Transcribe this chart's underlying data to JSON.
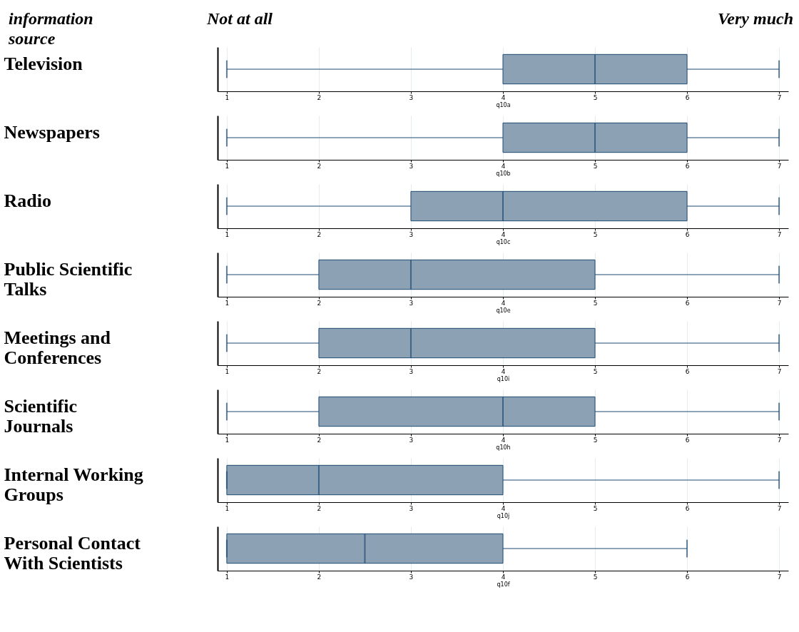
{
  "chart_data": [
    {
      "type": "box",
      "orientation": "horizontal",
      "ylabel": "Television",
      "xlabel": "q10a",
      "annotations": [
        "information source",
        "Not at all",
        "Very much"
      ],
      "categories": [
        null
      ],
      "xlim": [
        0.9,
        7.1
      ],
      "xticks": [
        1,
        2,
        3,
        4,
        5,
        6,
        7
      ],
      "grid": "x",
      "tick_labels": "x",
      "color": "#8da1b5",
      "boxes": [
        {
          "low": 1,
          "q1": 4,
          "median": 5,
          "q3": 6,
          "high": 7
        }
      ]
    },
    {
      "type": "box",
      "orientation": "horizontal",
      "ylabel": "Newspapers",
      "xlabel": "q10b",
      "categories": [
        null
      ],
      "xlim": [
        0.9,
        7.1
      ],
      "xticks": [
        1,
        2,
        3,
        4,
        5,
        6,
        7
      ],
      "grid": "x",
      "tick_labels": "x",
      "color": "#8da1b5",
      "boxes": [
        {
          "low": 1,
          "q1": 4,
          "median": 5,
          "q3": 6,
          "high": 7
        }
      ]
    },
    {
      "type": "box",
      "orientation": "horizontal",
      "ylabel": "Radio",
      "xlabel": "q10c",
      "categories": [
        null
      ],
      "xlim": [
        0.9,
        7.1
      ],
      "xticks": [
        1,
        2,
        3,
        4,
        5,
        6,
        7
      ],
      "grid": "x",
      "tick_labels": "x",
      "color": "#8da1b5",
      "boxes": [
        {
          "low": 1,
          "q1": 3,
          "median": 4,
          "q3": 6,
          "high": 7
        }
      ]
    },
    {
      "type": "box",
      "orientation": "horizontal",
      "ylabel": "Public Scientific Talks",
      "xlabel": "q10e",
      "categories": [
        null
      ],
      "xlim": [
        0.9,
        7.1
      ],
      "xticks": [
        1,
        2,
        3,
        4,
        5,
        6,
        7
      ],
      "grid": "x",
      "tick_labels": "x",
      "color": "#8da1b5",
      "boxes": [
        {
          "low": 1,
          "q1": 2,
          "median": 3,
          "q3": 5,
          "high": 7
        }
      ]
    },
    {
      "type": "box",
      "orientation": "horizontal",
      "ylabel": "Meetings and Conferences",
      "xlabel": "q10i",
      "categories": [
        null
      ],
      "xlim": [
        0.9,
        7.1
      ],
      "xticks": [
        1,
        2,
        3,
        4,
        5,
        6,
        7
      ],
      "grid": "x",
      "tick_labels": "x",
      "color": "#8da1b5",
      "boxes": [
        {
          "low": 1,
          "q1": 2,
          "median": 3,
          "q3": 5,
          "high": 7
        }
      ]
    },
    {
      "type": "box",
      "orientation": "horizontal",
      "ylabel": "Scientific Journals",
      "xlabel": "q10h",
      "categories": [
        null
      ],
      "xlim": [
        0.9,
        7.1
      ],
      "xticks": [
        1,
        2,
        3,
        4,
        5,
        6,
        7
      ],
      "grid": "x",
      "tick_labels": "x",
      "color": "#8da1b5",
      "boxes": [
        {
          "low": 1,
          "q1": 2,
          "median": 4,
          "q3": 5,
          "high": 7
        }
      ]
    },
    {
      "type": "box",
      "orientation": "horizontal",
      "ylabel": "Internal Working Groups",
      "xlabel": "q10j",
      "categories": [
        null
      ],
      "xlim": [
        0.9,
        7.1
      ],
      "xticks": [
        1,
        2,
        3,
        4,
        5,
        6,
        7
      ],
      "grid": "x",
      "tick_labels": "x",
      "color": "#8da1b5",
      "boxes": [
        {
          "low": 1,
          "q1": 1,
          "median": 2,
          "q3": 4,
          "high": 7
        }
      ]
    },
    {
      "type": "box",
      "orientation": "horizontal",
      "ylabel": "Personal Contact With Scientists",
      "xlabel": "q10f",
      "categories": [
        null
      ],
      "xlim": [
        0.9,
        7.1
      ],
      "xticks": [
        1,
        2,
        3,
        4,
        5,
        6,
        7
      ],
      "grid": "x",
      "tick_labels": "x",
      "color": "#8da1b5",
      "boxes": [
        {
          "low": 1,
          "q1": 1,
          "median": 2.5,
          "q3": 4,
          "high": 6
        }
      ]
    }
  ]
}
